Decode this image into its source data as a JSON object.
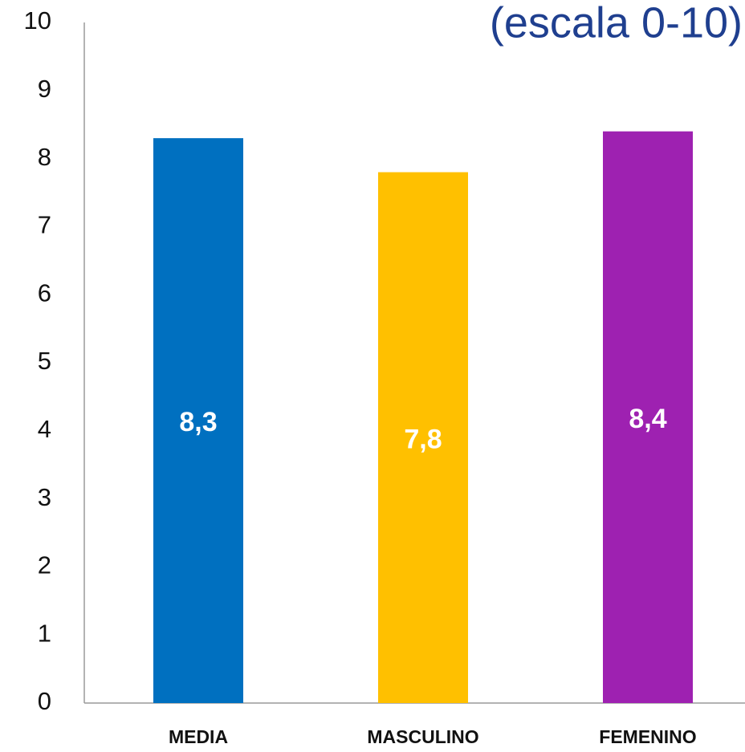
{
  "chart_data": {
    "type": "bar",
    "title": "(escala 0-10)",
    "categories": [
      "MEDIA",
      "MASCULINO",
      "FEMENINO"
    ],
    "values": [
      8.3,
      7.8,
      8.4
    ],
    "value_labels": [
      "8,3",
      "7,8",
      "8,4"
    ],
    "colors": [
      "#0070c0",
      "#ffc000",
      "#9e21b1"
    ],
    "ylim": [
      0,
      10
    ],
    "yticks": [
      0,
      1,
      2,
      3,
      4,
      5,
      6,
      7,
      8,
      9,
      10
    ],
    "grid": false
  }
}
